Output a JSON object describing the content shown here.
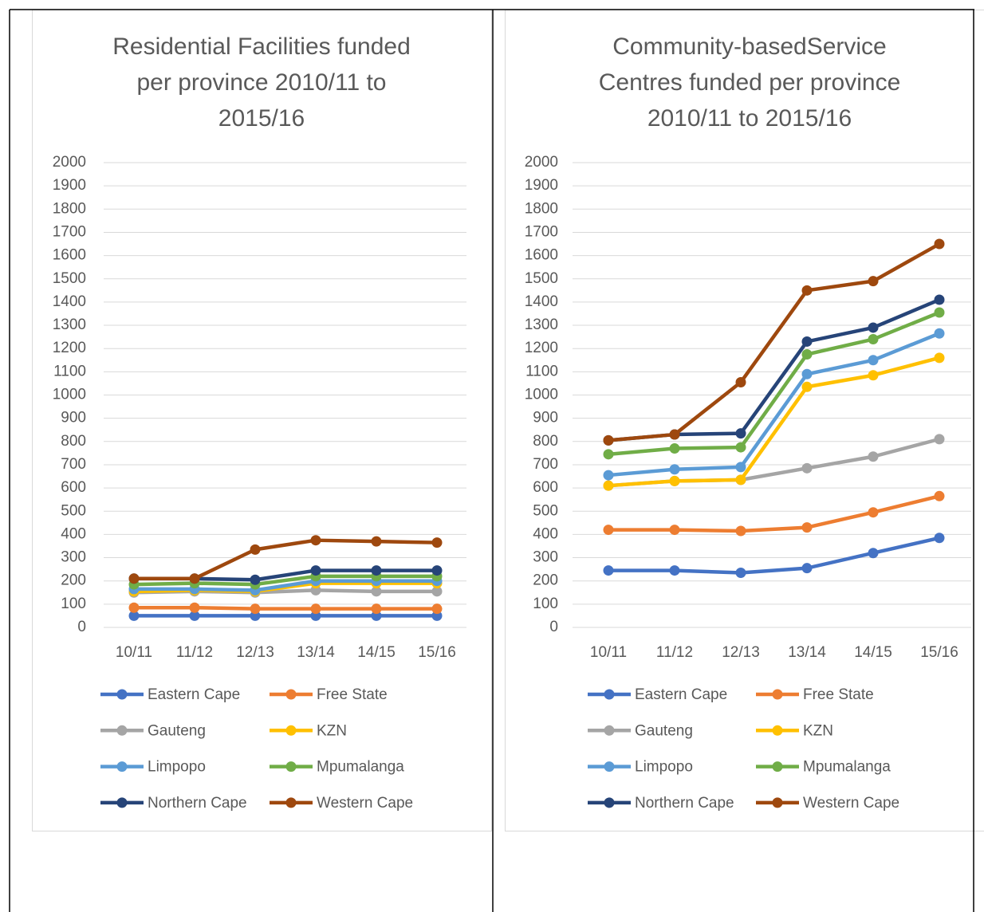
{
  "chart_data": [
    {
      "type": "line",
      "title": [
        "Residential Facilities funded",
        "per province 2010/11 to",
        "2015/16"
      ],
      "categories": [
        "10/11",
        "11/12",
        "12/13",
        "13/14",
        "14/15",
        "15/16"
      ],
      "ylim": [
        0,
        2000
      ],
      "yticks": [
        0,
        100,
        200,
        300,
        400,
        500,
        600,
        700,
        800,
        900,
        1000,
        1100,
        1200,
        1300,
        1400,
        1500,
        1600,
        1700,
        1800,
        1900,
        2000
      ],
      "grid": true,
      "legend": "bottom",
      "series": [
        {
          "name": "Eastern Cape",
          "color": "#4472c4",
          "values": [
            50,
            50,
            50,
            50,
            50,
            50
          ]
        },
        {
          "name": "Free State",
          "color": "#ed7d31",
          "values": [
            85,
            85,
            80,
            80,
            80,
            80
          ]
        },
        {
          "name": "Gauteng",
          "color": "#a5a5a5",
          "values": [
            150,
            155,
            150,
            160,
            155,
            155
          ]
        },
        {
          "name": "KZN",
          "color": "#ffc000",
          "values": [
            155,
            160,
            155,
            190,
            190,
            190
          ]
        },
        {
          "name": "Limpopo",
          "color": "#5b9bd5",
          "values": [
            165,
            165,
            160,
            200,
            200,
            200
          ]
        },
        {
          "name": "Mpumalanga",
          "color": "#70ad47",
          "values": [
            185,
            190,
            185,
            220,
            220,
            220
          ]
        },
        {
          "name": "Northern Cape",
          "color": "#264478",
          "values": [
            210,
            210,
            205,
            245,
            245,
            245
          ]
        },
        {
          "name": "Western Cape",
          "color": "#9e480e",
          "values": [
            210,
            210,
            335,
            375,
            370,
            365
          ]
        }
      ]
    },
    {
      "type": "line",
      "title": [
        "Community-basedService",
        "Centres funded per province",
        "2010/11 to 2015/16"
      ],
      "categories": [
        "10/11",
        "11/12",
        "12/13",
        "13/14",
        "14/15",
        "15/16"
      ],
      "ylim": [
        0,
        2000
      ],
      "yticks": [
        0,
        100,
        200,
        300,
        400,
        500,
        600,
        700,
        800,
        900,
        1000,
        1100,
        1200,
        1300,
        1400,
        1500,
        1600,
        1700,
        1800,
        1900,
        2000
      ],
      "grid": true,
      "legend": "bottom",
      "series": [
        {
          "name": "Eastern Cape",
          "color": "#4472c4",
          "values": [
            245,
            245,
            235,
            255,
            320,
            385
          ]
        },
        {
          "name": "Free State",
          "color": "#ed7d31",
          "values": [
            420,
            420,
            415,
            430,
            495,
            565
          ]
        },
        {
          "name": "Gauteng",
          "color": "#a5a5a5",
          "values": [
            610,
            630,
            635,
            685,
            735,
            810
          ]
        },
        {
          "name": "KZN",
          "color": "#ffc000",
          "values": [
            610,
            630,
            635,
            1035,
            1085,
            1160
          ]
        },
        {
          "name": "Limpopo",
          "color": "#5b9bd5",
          "values": [
            655,
            680,
            690,
            1090,
            1150,
            1265
          ]
        },
        {
          "name": "Mpumalanga",
          "color": "#70ad47",
          "values": [
            745,
            770,
            775,
            1175,
            1240,
            1355
          ]
        },
        {
          "name": "Northern Cape",
          "color": "#264478",
          "values": [
            805,
            830,
            835,
            1230,
            1290,
            1410
          ]
        },
        {
          "name": "Western Cape",
          "color": "#9e480e",
          "values": [
            805,
            830,
            1055,
            1450,
            1490,
            1650
          ]
        }
      ]
    }
  ]
}
